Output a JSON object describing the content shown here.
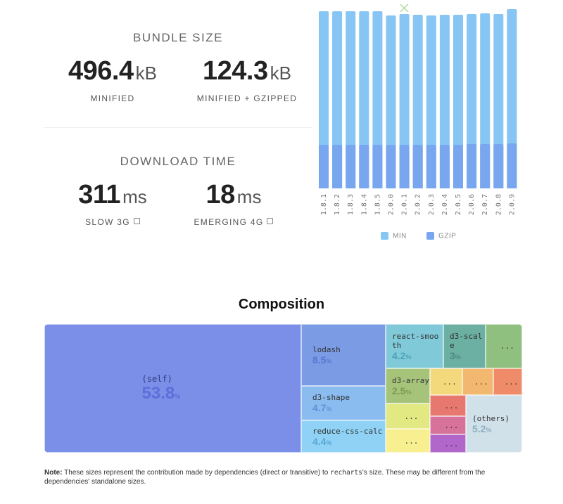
{
  "bundle_size": {
    "title": "BUNDLE SIZE",
    "stats": [
      {
        "value": "496.4",
        "unit": "kB",
        "label": "MINIFIED"
      },
      {
        "value": "124.3",
        "unit": "kB",
        "label": "MINIFIED + GZIPPED"
      }
    ]
  },
  "download_time": {
    "title": "DOWNLOAD TIME",
    "stats": [
      {
        "value": "311",
        "unit": "ms",
        "label": "SLOW 3G"
      },
      {
        "value": "18",
        "unit": "ms",
        "label": "EMERGING 4G"
      }
    ]
  },
  "chart_data": {
    "type": "bar",
    "categories": [
      "1.8.1",
      "1.8.2",
      "1.8.3",
      "1.8.4",
      "1.8.5",
      "2.0.0",
      "2.0.1",
      "2.0.2",
      "2.0.3",
      "2.0.4",
      "2.0.5",
      "2.0.6",
      "2.0.7",
      "2.0.8",
      "2.0.9"
    ],
    "series": [
      {
        "name": "MIN",
        "color": "#86c5f4",
        "values": [
          490.6,
          490.6,
          490.6,
          490.6,
          490.6,
          478.9,
          482.8,
          480.8,
          478.9,
          480.8,
          480.8,
          482.8,
          484.7,
          482.8,
          496.4
        ]
      },
      {
        "name": "GZIP",
        "color": "#78a6ef",
        "values": [
          120.7,
          120.7,
          120.7,
          120.7,
          120.7,
          120.7,
          120.7,
          120.7,
          120.7,
          120.7,
          120.7,
          122.6,
          122.6,
          122.6,
          124.3
        ]
      }
    ]
  },
  "composition": {
    "title": "Composition",
    "unit": "%",
    "items": [
      {
        "name": "(self)",
        "value": 53.8
      },
      {
        "name": "lodash",
        "value": 8.5
      },
      {
        "name": "d3-shape",
        "value": 4.7
      },
      {
        "name": "reduce-css-calc",
        "value": 4.4
      },
      {
        "name": "react-smooth",
        "value": 4.2
      },
      {
        "name": "d3-scale",
        "value": 3.0
      },
      {
        "name": "..."
      },
      {
        "name": "d3-array",
        "value": 2.5
      },
      {
        "name": "..."
      },
      {
        "name": "..."
      },
      {
        "name": "..."
      },
      {
        "name": "..."
      },
      {
        "name": "..."
      },
      {
        "name": "..."
      },
      {
        "name": "..."
      },
      {
        "name": "..."
      },
      {
        "name": "(others)",
        "value": 5.2
      }
    ]
  },
  "note": {
    "label": "Note:",
    "text_before": " These sizes represent the contribution made by dependencies (direct or transitive) to ",
    "package": "recharts",
    "text_after": "'s size. These may be different from the dependencies' standalone sizes."
  }
}
